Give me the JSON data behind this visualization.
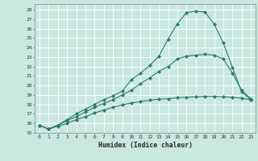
{
  "xlabel": "Humidex (Indice chaleur)",
  "bg_color": "#c8e8e0",
  "grid_color": "#ffffff",
  "line_color": "#2d7a6e",
  "xlim": [
    -0.5,
    23.5
  ],
  "ylim": [
    15,
    28.6
  ],
  "xticks": [
    0,
    1,
    2,
    3,
    4,
    5,
    6,
    7,
    8,
    9,
    10,
    11,
    12,
    13,
    14,
    15,
    16,
    17,
    18,
    19,
    20,
    21,
    22,
    23
  ],
  "yticks": [
    15,
    16,
    17,
    18,
    19,
    20,
    21,
    22,
    23,
    24,
    25,
    26,
    27,
    28
  ],
  "line1_x": [
    0,
    1,
    2,
    3,
    4,
    5,
    6,
    7,
    8,
    9,
    10,
    11,
    12,
    13,
    14,
    15,
    16,
    17,
    18,
    19,
    20,
    21,
    22,
    23
  ],
  "line1_y": [
    15.8,
    15.4,
    15.8,
    16.4,
    17.0,
    17.5,
    18.0,
    18.5,
    18.9,
    19.4,
    20.6,
    21.3,
    22.1,
    23.1,
    24.9,
    26.5,
    27.7,
    27.85,
    27.75,
    26.5,
    24.5,
    21.9,
    19.3,
    18.5
  ],
  "line2_x": [
    0,
    1,
    2,
    3,
    4,
    5,
    6,
    7,
    8,
    9,
    10,
    11,
    12,
    13,
    14,
    15,
    16,
    17,
    18,
    19,
    20,
    21,
    22,
    23
  ],
  "line2_y": [
    15.8,
    15.4,
    15.8,
    16.3,
    16.7,
    17.2,
    17.7,
    18.1,
    18.5,
    19.0,
    19.5,
    20.2,
    20.8,
    21.5,
    22.0,
    22.8,
    23.1,
    23.2,
    23.3,
    23.2,
    22.8,
    21.3,
    19.5,
    18.6
  ],
  "line3_x": [
    0,
    1,
    2,
    3,
    4,
    5,
    6,
    7,
    8,
    9,
    10,
    11,
    12,
    13,
    14,
    15,
    16,
    17,
    18,
    19,
    20,
    21,
    22,
    23
  ],
  "line3_y": [
    15.8,
    15.4,
    15.7,
    16.0,
    16.4,
    16.7,
    17.1,
    17.4,
    17.7,
    17.95,
    18.15,
    18.3,
    18.45,
    18.55,
    18.6,
    18.7,
    18.75,
    18.8,
    18.85,
    18.85,
    18.8,
    18.75,
    18.65,
    18.5
  ]
}
